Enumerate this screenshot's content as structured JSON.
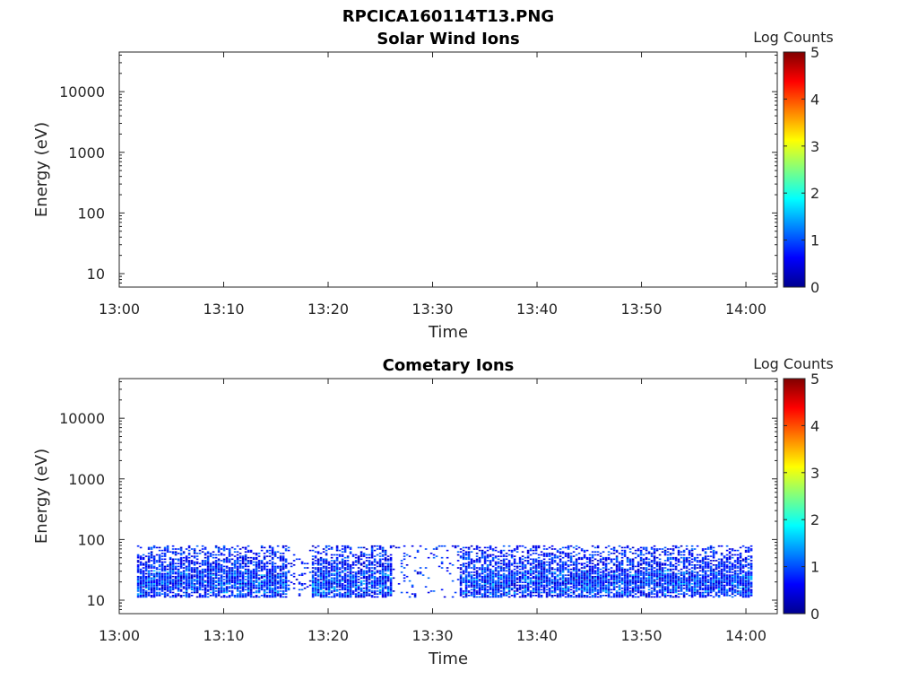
{
  "figure_title": "RPCICA160114T13.PNG",
  "chart_data": [
    {
      "type": "heatmap",
      "title": "Solar Wind Ions",
      "xlabel": "Time",
      "ylabel": "Energy (eV)",
      "x_ticks": [
        "13:00",
        "13:10",
        "13:20",
        "13:30",
        "13:40",
        "13:50",
        "14:00"
      ],
      "x_range_minutes": [
        0,
        63
      ],
      "y_scale": "log",
      "y_ticks": [
        10,
        100,
        1000,
        10000
      ],
      "y_tick_labels": [
        "10",
        "100",
        "1000",
        "10000"
      ],
      "y_range": [
        6,
        45000
      ],
      "colorbar": {
        "label": "Log Counts",
        "ticks": [
          "0",
          "1",
          "2",
          "3",
          "4",
          "5"
        ],
        "range": [
          0,
          5
        ],
        "colormap": "jet"
      },
      "data_present": false
    },
    {
      "type": "heatmap",
      "title": "Cometary Ions",
      "xlabel": "Time",
      "ylabel": "Energy (eV)",
      "x_ticks": [
        "13:00",
        "13:10",
        "13:20",
        "13:30",
        "13:40",
        "13:50",
        "14:00"
      ],
      "x_range_minutes": [
        0,
        63
      ],
      "y_scale": "log",
      "y_ticks": [
        10,
        100,
        1000,
        10000
      ],
      "y_tick_labels": [
        "10",
        "100",
        "1000",
        "10000"
      ],
      "y_range": [
        6,
        45000
      ],
      "colorbar": {
        "label": "Log Counts",
        "ticks": [
          "0",
          "1",
          "2",
          "3",
          "4",
          "5"
        ],
        "range": [
          0,
          5
        ],
        "colormap": "jet"
      },
      "data_present": true,
      "data_time_range_minutes": [
        1.7,
        60.5
      ],
      "data_energy_range_eV": [
        11,
        80
      ],
      "peak_energy_eV": 20,
      "dense_intervals_minutes": [
        [
          1.7,
          16
        ],
        [
          18.3,
          26
        ],
        [
          32.5,
          60.5
        ]
      ],
      "sparse_intervals_minutes": [
        [
          16,
          18.3
        ],
        [
          26,
          32.5
        ]
      ],
      "typical_log_counts": [
        0.3,
        1.2
      ],
      "max_log_counts": 1.6
    }
  ]
}
